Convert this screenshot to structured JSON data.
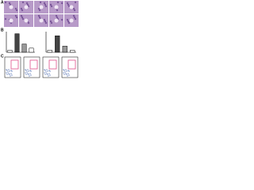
{
  "panels": [
    {
      "label": "A"
    },
    {
      "label": "B"
    },
    {
      "label": "C"
    }
  ],
  "chart_data": [
    {
      "type": "bar",
      "categories": [
        null,
        null,
        null,
        null
      ],
      "values": [
        1,
        9,
        4,
        2
      ],
      "colors": [
        "#ffffff",
        "#444444",
        "#999999",
        "#ffffff"
      ],
      "ylim": [
        0,
        10
      ]
    },
    {
      "type": "bar",
      "categories": [
        null,
        null,
        null,
        null
      ],
      "values": [
        1,
        8,
        3,
        1
      ],
      "colors": [
        "#ffffff",
        "#444444",
        "#999999",
        "#ffffff"
      ],
      "ylim": [
        0,
        10
      ]
    }
  ]
}
